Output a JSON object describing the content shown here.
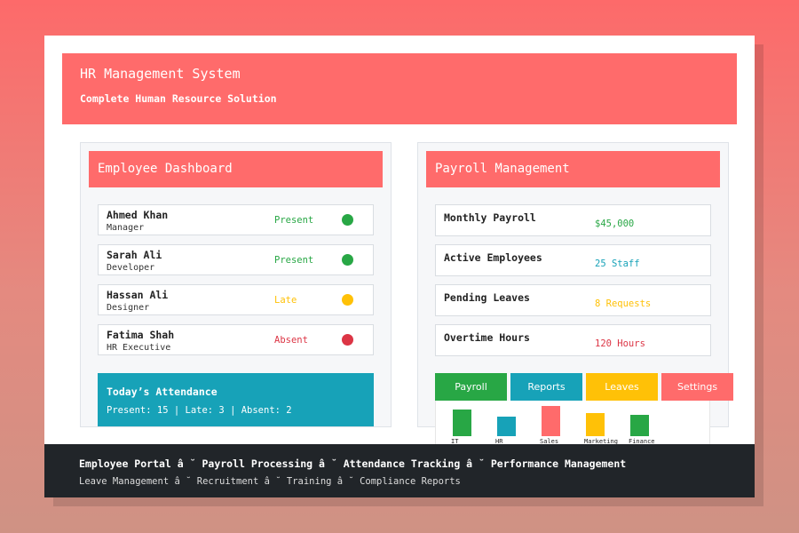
{
  "header": {
    "title": "HR Management System",
    "subtitle": "Complete Human Resource Solution"
  },
  "employee_dashboard": {
    "title": "Employee Dashboard",
    "employees": [
      {
        "name": "Ahmed Khan",
        "role": "Manager",
        "status": "Present",
        "status_color": "#28a745"
      },
      {
        "name": "Sarah Ali",
        "role": "Developer",
        "status": "Present",
        "status_color": "#28a745"
      },
      {
        "name": "Hassan Ali",
        "role": "Designer",
        "status": "Late",
        "status_color": "#ffc107"
      },
      {
        "name": "Fatima Shah",
        "role": "HR Executive",
        "status": "Absent",
        "status_color": "#dc3545"
      }
    ],
    "attendance": {
      "title": "Today’s Attendance",
      "summary": "Present: 15 | Late: 3 | Absent: 2"
    }
  },
  "payroll": {
    "title": "Payroll Management",
    "items": [
      {
        "label": "Monthly Payroll",
        "value": "$45,000",
        "color": "#28a745"
      },
      {
        "label": "Active Employees",
        "value": "25 Staff",
        "color": "#17a2b8"
      },
      {
        "label": "Pending Leaves",
        "value": "8 Requests",
        "color": "#ffc107"
      },
      {
        "label": "Overtime Hours",
        "value": "120 Hours",
        "color": "#dc3545"
      }
    ]
  },
  "tabs": [
    {
      "label": "Payroll",
      "color": "#28a745"
    },
    {
      "label": "Reports",
      "color": "#17a2b8"
    },
    {
      "label": "Leaves",
      "color": "#ffc107"
    },
    {
      "label": "Settings",
      "color": "#ff6b6b"
    }
  ],
  "department_chart": {
    "type": "bar",
    "categories": [
      "IT",
      "HR",
      "Sales",
      "Marketing",
      "Finance"
    ],
    "values": [
      0.75,
      0.55,
      0.85,
      0.65,
      0.6
    ],
    "colors": [
      "#28a745",
      "#17a2b8",
      "#ff6b6b",
      "#ffc107",
      "#28a745"
    ]
  },
  "footer": {
    "main": "Employee Portal â ˘ Payroll Processing â ˘ Attendance Tracking â ˘ Performance Management",
    "sub": "Leave Management â ˘ Recruitment â ˘ Training â ˘ Compliance Reports"
  }
}
